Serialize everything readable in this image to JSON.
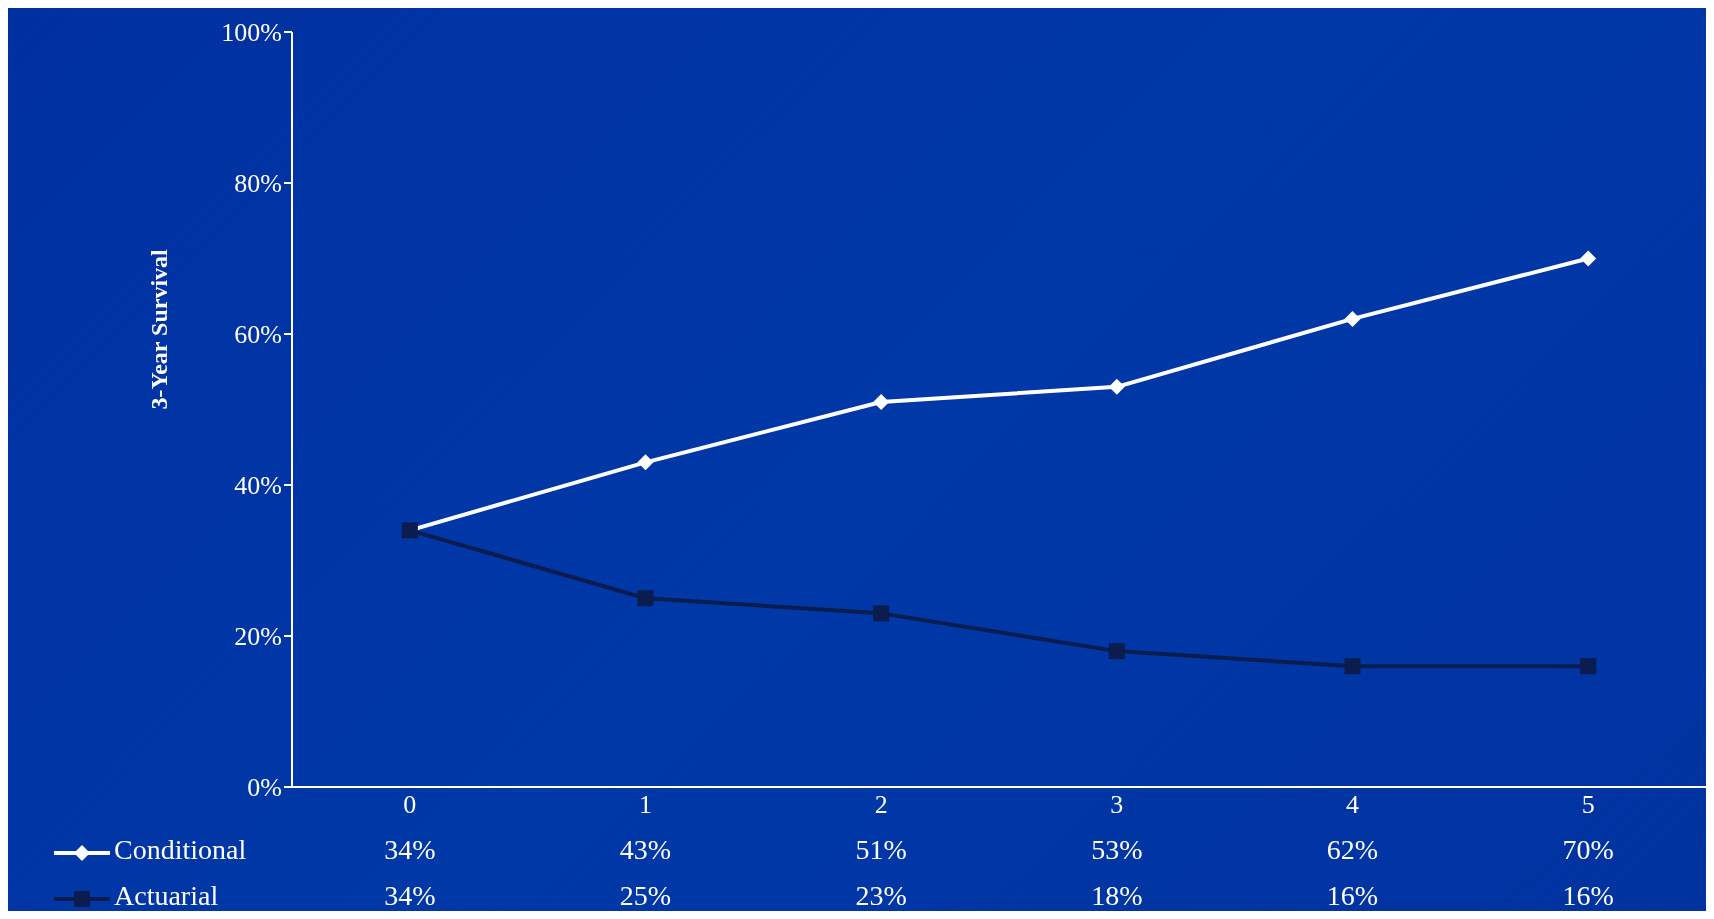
{
  "chart_data": {
    "type": "line",
    "categories": [
      "0",
      "1",
      "2",
      "3",
      "4",
      "5"
    ],
    "series": [
      {
        "name": "Conditional",
        "color": "#ffffff",
        "marker": "diamond",
        "values": [
          34,
          43,
          51,
          53,
          62,
          70
        ],
        "value_labels": [
          "34%",
          "43%",
          "51%",
          "53%",
          "62%",
          "70%"
        ]
      },
      {
        "name": "Actuarial",
        "color": "#0b1c4f",
        "marker": "square",
        "values": [
          34,
          25,
          23,
          18,
          16,
          16
        ],
        "value_labels": [
          "34%",
          "25%",
          "23%",
          "18%",
          "16%",
          "16%"
        ]
      }
    ],
    "ylabel": "3-Year Survival",
    "ylim": [
      0,
      100
    ],
    "yticks": [
      {
        "value": 0,
        "label": "0%"
      },
      {
        "value": 20,
        "label": "20%"
      },
      {
        "value": 40,
        "label": "40%"
      },
      {
        "value": 60,
        "label": "60%"
      },
      {
        "value": 80,
        "label": "80%"
      },
      {
        "value": 100,
        "label": "100%"
      }
    ],
    "legend": "bottom left",
    "line_style": "solid",
    "grid": false
  }
}
